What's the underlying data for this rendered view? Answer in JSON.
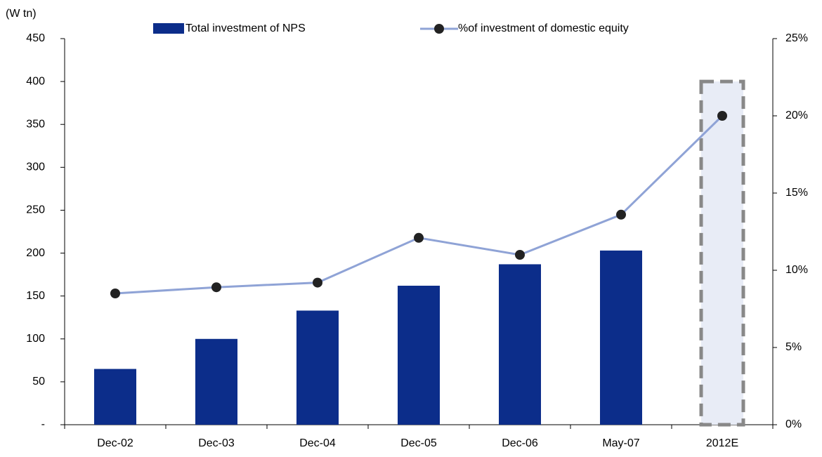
{
  "chart_data": {
    "type": "bar_line",
    "ylabel": "(W tn)",
    "categories": [
      "Dec-02",
      "Dec-03",
      "Dec-04",
      "Dec-05",
      "Dec-06",
      "May-07",
      "2012E"
    ],
    "series": [
      {
        "name": "Total investment of NPS",
        "type": "bar",
        "color": "#0c2d8a",
        "colors": [
          "#0c2d8a",
          "#0c2d8a",
          "#0c2d8a",
          "#0c2d8a",
          "#0c2d8a",
          "#0c2d8a",
          "#e8ecf6"
        ],
        "edge_styles": [
          null,
          null,
          null,
          null,
          null,
          null,
          "dashed"
        ],
        "values": [
          65,
          100,
          133,
          162,
          187,
          203,
          400
        ]
      },
      {
        "name": "%of investment of domestic equity",
        "type": "line",
        "axis": "y2",
        "color": "#8fa3d6",
        "marker_color": "#222222",
        "values": [
          8.5,
          8.9,
          9.2,
          12.1,
          11.0,
          13.6,
          20.0
        ]
      }
    ],
    "ylim": [
      0,
      450
    ],
    "yticks": [
      {
        "value": 0,
        "label": "-"
      },
      50,
      100,
      150,
      200,
      250,
      300,
      350,
      400,
      450
    ],
    "y2lim": [
      0,
      25
    ],
    "y2ticks": [
      {
        "value": 0,
        "label": "0%"
      },
      {
        "value": 5,
        "label": "5%"
      },
      {
        "value": 10,
        "label": "10%"
      },
      {
        "value": 15,
        "label": "15%"
      },
      {
        "value": 20,
        "label": "20%"
      },
      {
        "value": 25,
        "label": "25%"
      }
    ]
  }
}
